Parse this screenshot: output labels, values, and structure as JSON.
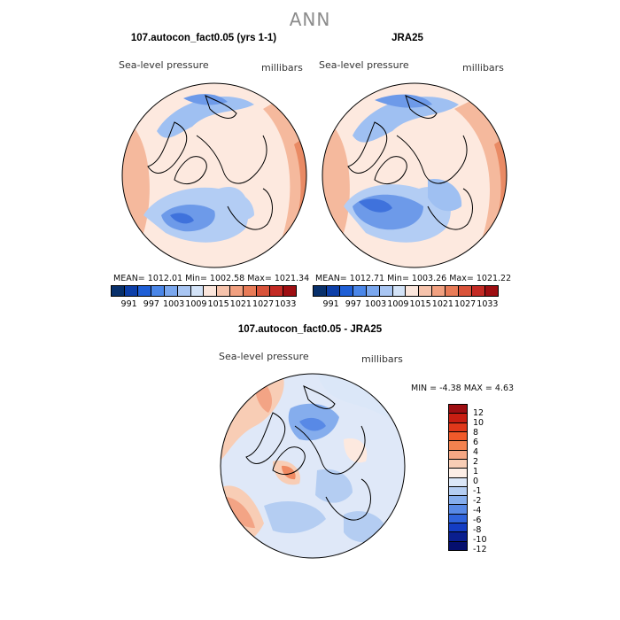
{
  "page_title": "ANN",
  "panels": [
    {
      "title": "107.autocon_fact0.05 (yrs 1-1)",
      "variable": "Sea-level pressure",
      "units": "millibars",
      "stats": "MEAN= 1012.01   Min= 1002.58   Max= 1021.34"
    },
    {
      "title": "JRA25",
      "variable": "Sea-level pressure",
      "units": "millibars",
      "stats": "MEAN= 1012.71   Min= 1003.26   Max= 1021.22"
    },
    {
      "title": "107.autocon_fact0.05 - JRA25",
      "variable": "Sea-level pressure",
      "units": "millibars",
      "stats": "MIN =   -4.38 MAX =    4.63"
    }
  ],
  "field_colorbar": {
    "labels": [
      "991",
      "997",
      "1003",
      "1009",
      "1015",
      "1021",
      "1027",
      "1033"
    ],
    "colors": [
      "#08306b",
      "#0d3fa8",
      "#1f5fd6",
      "#4a86e8",
      "#7aa7ee",
      "#a9c6f3",
      "#d3e3f8",
      "#fbe6dc",
      "#f6c3ac",
      "#f1a080",
      "#e87b57",
      "#d9533a",
      "#c32a24",
      "#9e0e12"
    ]
  },
  "diff_colorbar": {
    "labels": [
      "12",
      "10",
      "8",
      "6",
      "4",
      "2",
      "1",
      "0",
      "-1",
      "-2",
      "-4",
      "-6",
      "-8",
      "-10",
      "-12"
    ],
    "colors": [
      "#9e0e12",
      "#c81e12",
      "#e0381a",
      "#f05a2a",
      "#f3824f",
      "#f5a784",
      "#f8cdb5",
      "#fdeee6",
      "#dbe7f8",
      "#b4cdf2",
      "#85aded",
      "#5889e6",
      "#2f63dc",
      "#143dc4",
      "#0a1f8f",
      "#050f6e"
    ]
  }
}
